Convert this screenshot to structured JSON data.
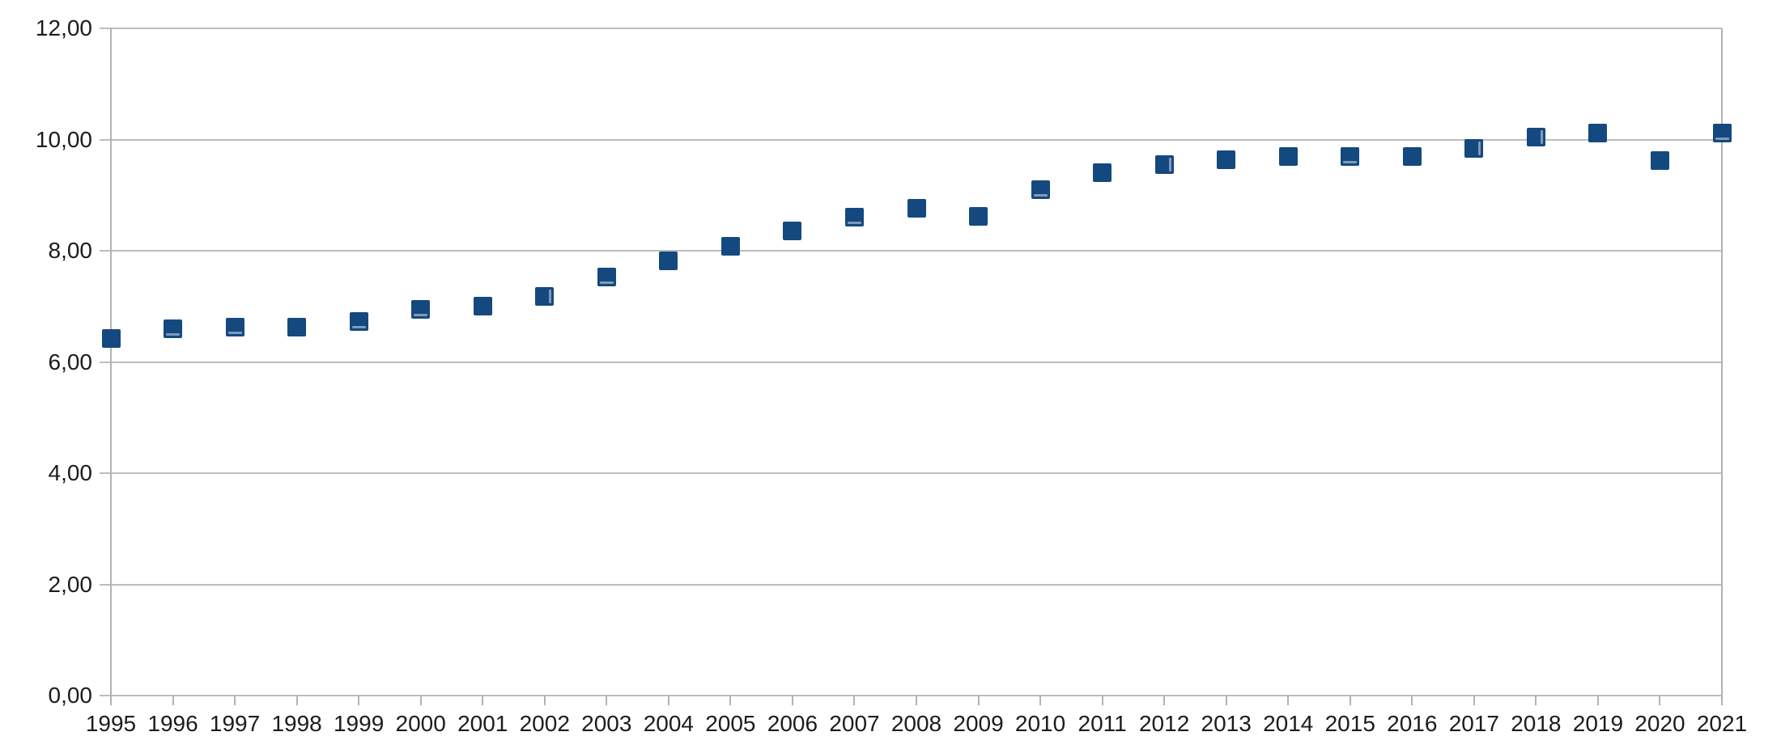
{
  "chart_data": {
    "type": "scatter",
    "title": "",
    "xlabel": "",
    "ylabel": "",
    "legend": "none",
    "grid": "horizontal",
    "xlim": [
      1995,
      2021
    ],
    "ylim": [
      0,
      12
    ],
    "y_ticks": [
      {
        "value": 0,
        "label": "0,00"
      },
      {
        "value": 2,
        "label": "2,00"
      },
      {
        "value": 4,
        "label": "4,00"
      },
      {
        "value": 6,
        "label": "6,00"
      },
      {
        "value": 8,
        "label": "8,00"
      },
      {
        "value": 10,
        "label": "10,00"
      },
      {
        "value": 12,
        "label": "12,00"
      }
    ],
    "x_ticks": [
      "1995",
      "1996",
      "1997",
      "1998",
      "1999",
      "2000",
      "2001",
      "2002",
      "2003",
      "2004",
      "2005",
      "2006",
      "2007",
      "2008",
      "2009",
      "2010",
      "2011",
      "2012",
      "2013",
      "2014",
      "2015",
      "2016",
      "2017",
      "2018",
      "2019",
      "2020",
      "2021"
    ],
    "series": [
      {
        "name": "series-1",
        "marker": "square",
        "color": "#14497F",
        "points": [
          {
            "x": 1995,
            "y": 6.42
          },
          {
            "x": 1996,
            "y": 6.6
          },
          {
            "x": 1997,
            "y": 6.63
          },
          {
            "x": 1998,
            "y": 6.62
          },
          {
            "x": 1999,
            "y": 6.73
          },
          {
            "x": 2000,
            "y": 6.95
          },
          {
            "x": 2001,
            "y": 7.0
          },
          {
            "x": 2002,
            "y": 7.18
          },
          {
            "x": 2003,
            "y": 7.53
          },
          {
            "x": 2004,
            "y": 7.82
          },
          {
            "x": 2005,
            "y": 8.08
          },
          {
            "x": 2006,
            "y": 8.35
          },
          {
            "x": 2007,
            "y": 8.6
          },
          {
            "x": 2008,
            "y": 8.77
          },
          {
            "x": 2009,
            "y": 8.62
          },
          {
            "x": 2010,
            "y": 9.1
          },
          {
            "x": 2011,
            "y": 9.4
          },
          {
            "x": 2012,
            "y": 9.55
          },
          {
            "x": 2013,
            "y": 9.64
          },
          {
            "x": 2014,
            "y": 9.7
          },
          {
            "x": 2015,
            "y": 9.69
          },
          {
            "x": 2016,
            "y": 9.69
          },
          {
            "x": 2017,
            "y": 9.84
          },
          {
            "x": 2018,
            "y": 10.05
          },
          {
            "x": 2019,
            "y": 10.11
          },
          {
            "x": 2020,
            "y": 9.62
          },
          {
            "x": 2021,
            "y": 10.11
          }
        ],
        "marker_highlights": {
          "1996": "bottom",
          "1997": "bottom",
          "1999": "bottom",
          "2000": "bottom",
          "2002": "right",
          "2003": "bottom",
          "2007": "bottom",
          "2010": "bottom",
          "2012": "right",
          "2015": "bottom",
          "2017": "right",
          "2018": "right",
          "2021": "bottom"
        }
      }
    ],
    "number_format": "comma-decimal"
  },
  "colors": {
    "background": "#FFFFFF",
    "marker": "#14497F",
    "marker_highlight": "#8099BB",
    "gridline": "#BDBDBD",
    "axis": "#B3B3B3",
    "label_text": "#1C1C1C"
  }
}
